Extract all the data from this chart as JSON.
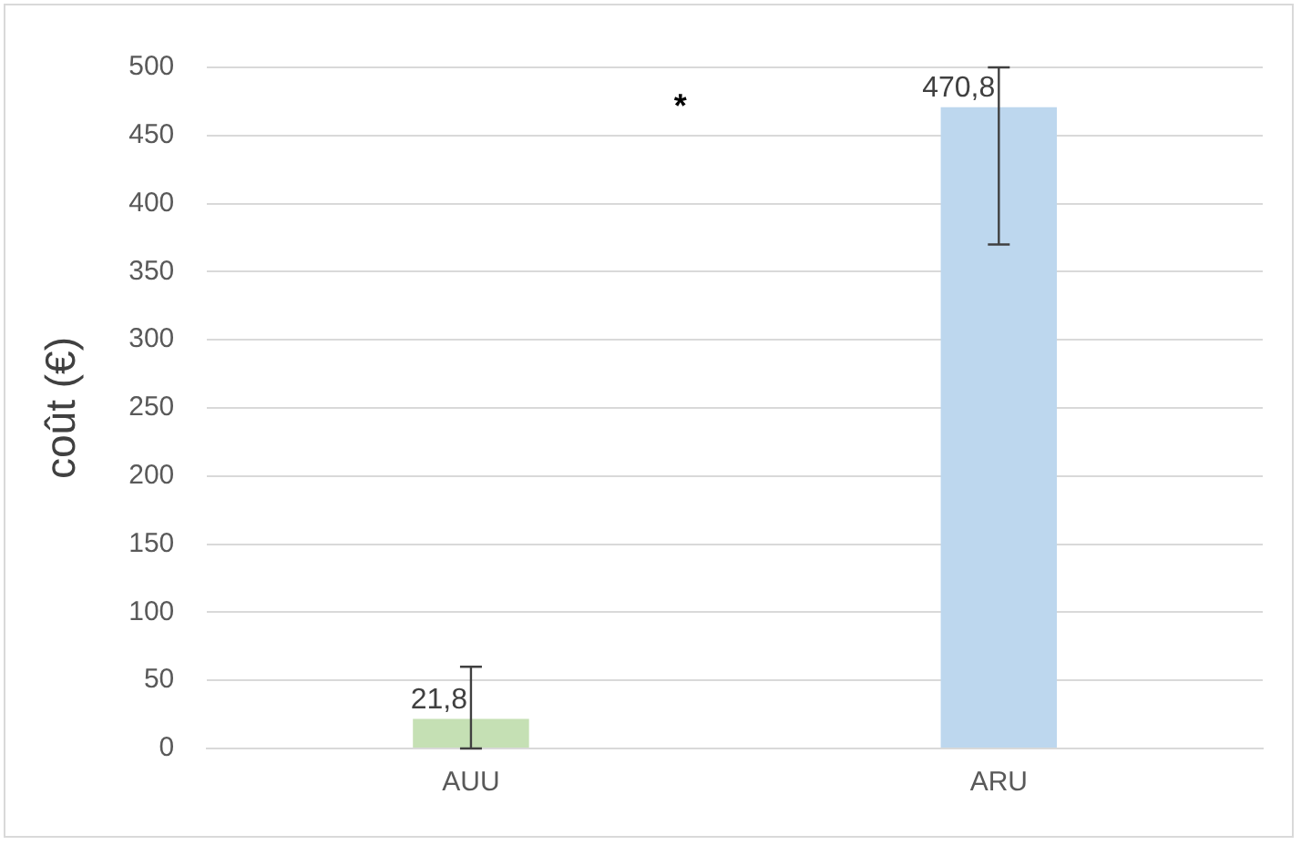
{
  "chart_data": {
    "type": "bar",
    "ylabel": "coût (€)",
    "categories": [
      "AUU",
      "ARU"
    ],
    "values": [
      21.8,
      470.8
    ],
    "colors": [
      "#c5e0b4",
      "#bdd7ee"
    ],
    "value_labels": [
      "21,8",
      "470,8"
    ],
    "errors": [
      [
        0,
        60
      ],
      [
        370,
        500
      ]
    ],
    "ylim": [
      0,
      500
    ],
    "yticks": [
      0,
      50,
      100,
      150,
      200,
      250,
      300,
      350,
      400,
      450,
      500
    ],
    "grid": "y",
    "legend": false,
    "annotations": [
      "*"
    ]
  }
}
